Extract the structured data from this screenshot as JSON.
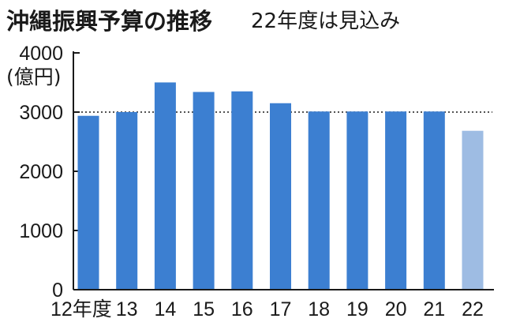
{
  "chart_data": {
    "type": "bar",
    "title": "沖縄振興予算の推移",
    "subtitle": "22年度は見込み",
    "unit_label": "(億円)",
    "categories": [
      "12年度",
      "13",
      "14",
      "15",
      "16",
      "17",
      "18",
      "19",
      "20",
      "21",
      "22"
    ],
    "values": [
      2937,
      3001,
      3501,
      3340,
      3350,
      3150,
      3010,
      3010,
      3010,
      3010,
      2684
    ],
    "y_ticks": [
      0,
      1000,
      2000,
      3000,
      4000
    ],
    "ylim": [
      0,
      4000
    ],
    "reference_line": 3000,
    "colors": {
      "bar": "#3c7fd1",
      "bar_estimate": "#9ebce3",
      "text": "#1a1a1a"
    },
    "estimate_index": 10
  }
}
